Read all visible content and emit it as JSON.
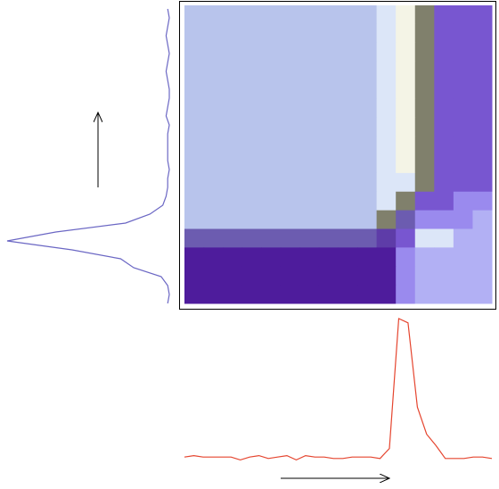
{
  "chart_data": [
    {
      "type": "heatmap",
      "values": [
        [
          6,
          6,
          6,
          6,
          6,
          6,
          6,
          6,
          6,
          6,
          7,
          8,
          9,
          3,
          3,
          3
        ],
        [
          6,
          6,
          6,
          6,
          6,
          6,
          6,
          6,
          6,
          6,
          7,
          8,
          9,
          3,
          3,
          3
        ],
        [
          6,
          6,
          6,
          6,
          6,
          6,
          6,
          6,
          6,
          6,
          7,
          8,
          9,
          3,
          3,
          3
        ],
        [
          6,
          6,
          6,
          6,
          6,
          6,
          6,
          6,
          6,
          6,
          7,
          8,
          9,
          3,
          3,
          3
        ],
        [
          6,
          6,
          6,
          6,
          6,
          6,
          6,
          6,
          6,
          6,
          7,
          8,
          9,
          3,
          3,
          3
        ],
        [
          6,
          6,
          6,
          6,
          6,
          6,
          6,
          6,
          6,
          6,
          7,
          8,
          9,
          3,
          3,
          3
        ],
        [
          6,
          6,
          6,
          6,
          6,
          6,
          6,
          6,
          6,
          6,
          7,
          8,
          9,
          3,
          3,
          3
        ],
        [
          6,
          6,
          6,
          6,
          6,
          6,
          6,
          6,
          6,
          6,
          7,
          8,
          9,
          3,
          3,
          3
        ],
        [
          6,
          6,
          6,
          6,
          6,
          6,
          6,
          6,
          6,
          6,
          7,
          8,
          9,
          3,
          3,
          3
        ],
        [
          6,
          6,
          6,
          6,
          6,
          6,
          6,
          6,
          6,
          6,
          7,
          7,
          9,
          3,
          3,
          3
        ],
        [
          6,
          6,
          6,
          6,
          6,
          6,
          6,
          6,
          6,
          6,
          7,
          9,
          3,
          3,
          4,
          4
        ],
        [
          6,
          6,
          6,
          6,
          6,
          6,
          6,
          6,
          6,
          6,
          9,
          2,
          4,
          4,
          4,
          5
        ],
        [
          2,
          2,
          2,
          2,
          2,
          2,
          2,
          2,
          2,
          2,
          1,
          3,
          7,
          7,
          5,
          5
        ],
        [
          0,
          0,
          0,
          0,
          0,
          0,
          0,
          0,
          0,
          0,
          0,
          4,
          5,
          5,
          5,
          5
        ],
        [
          0,
          0,
          0,
          0,
          0,
          0,
          0,
          0,
          0,
          0,
          0,
          4,
          5,
          5,
          5,
          5
        ],
        [
          0,
          0,
          0,
          0,
          0,
          0,
          0,
          0,
          0,
          0,
          0,
          4,
          5,
          5,
          5,
          5
        ]
      ],
      "colorscale": [
        [
          0,
          "#4e1c9c"
        ],
        [
          1,
          "#5e3ca8"
        ],
        [
          2,
          "#6c5cb0"
        ],
        [
          3,
          "#7856d0"
        ],
        [
          4,
          "#9a8aee"
        ],
        [
          5,
          "#b2b0f4"
        ],
        [
          6,
          "#b8c4ec"
        ],
        [
          7,
          "#dce6f8"
        ],
        [
          8,
          "#f4f4e6"
        ],
        [
          9,
          "#80806c"
        ]
      ]
    },
    {
      "type": "line",
      "orientation": "vertical",
      "color": "#6b67c4",
      "xlim": [
        0,
        100
      ],
      "values": [
        1,
        0,
        1,
        2,
        1,
        0,
        1,
        2,
        1,
        0,
        0,
        1,
        2,
        0,
        1,
        1,
        1,
        1,
        0,
        1,
        1,
        2,
        4,
        12,
        27,
        70,
        100,
        60,
        30,
        22,
        5,
        1,
        0,
        1
      ]
    },
    {
      "type": "line",
      "color": "#e5452f",
      "ylim": [
        0,
        100
      ],
      "values": [
        3,
        4,
        3,
        3,
        3,
        3,
        1,
        3,
        4,
        2,
        3,
        4,
        1,
        4,
        3,
        3,
        2,
        2,
        3,
        3,
        3,
        2,
        9,
        100,
        97,
        38,
        19,
        11,
        2,
        2,
        2,
        3,
        3,
        2
      ]
    }
  ]
}
